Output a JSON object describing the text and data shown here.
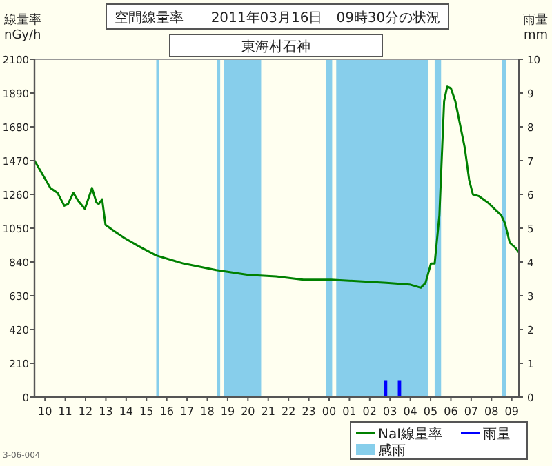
{
  "chart_data": {
    "type": "line",
    "title": "空間線量率　　2011年03月16日　09時30分の状況",
    "subtitle": "東海村石神",
    "ylabel": "線量率 nGy/h",
    "y2label": "雨量 mm",
    "annotations": [
      "3-06-004"
    ],
    "xlim": [
      "2011-03-15T09:29",
      "2011-03-16T09:21"
    ],
    "xticks": [
      {
        "value": "2011-03-15T10:00",
        "label": "10"
      },
      {
        "value": "2011-03-15T11:00",
        "label": "11"
      },
      {
        "value": "2011-03-15T12:00",
        "label": "12"
      },
      {
        "value": "2011-03-15T13:00",
        "label": "13"
      },
      {
        "value": "2011-03-15T14:00",
        "label": "14"
      },
      {
        "value": "2011-03-15T15:00",
        "label": "15"
      },
      {
        "value": "2011-03-15T16:00",
        "label": "16"
      },
      {
        "value": "2011-03-15T17:00",
        "label": "17"
      },
      {
        "value": "2011-03-15T18:00",
        "label": "18"
      },
      {
        "value": "2011-03-15T19:00",
        "label": "19"
      },
      {
        "value": "2011-03-15T20:00",
        "label": "20"
      },
      {
        "value": "2011-03-15T21:00",
        "label": "21"
      },
      {
        "value": "2011-03-15T22:00",
        "label": "22"
      },
      {
        "value": "2011-03-15T23:00",
        "label": "23"
      },
      {
        "value": "2011-03-16T00:00",
        "label": "00"
      },
      {
        "value": "2011-03-16T01:00",
        "label": "01"
      },
      {
        "value": "2011-03-16T02:00",
        "label": "02"
      },
      {
        "value": "2011-03-16T03:00",
        "label": "03"
      },
      {
        "value": "2011-03-16T04:00",
        "label": "04"
      },
      {
        "value": "2011-03-16T05:00",
        "label": "05"
      },
      {
        "value": "2011-03-16T06:00",
        "label": "06"
      },
      {
        "value": "2011-03-16T07:00",
        "label": "07"
      },
      {
        "value": "2011-03-16T08:00",
        "label": "08"
      },
      {
        "value": "2011-03-16T09:00",
        "label": "09"
      }
    ],
    "ylim": [
      0,
      2100
    ],
    "yticks": [
      0,
      210,
      420,
      630,
      840,
      1050,
      1260,
      1470,
      1680,
      1890,
      2100
    ],
    "y2lim": [
      0,
      10
    ],
    "y2ticks": [
      0,
      1,
      2,
      3,
      4,
      5,
      6,
      7,
      8,
      9,
      10
    ],
    "legend": "bottom right",
    "series": [
      {
        "name": "NaI線量率",
        "color": "#008000",
        "x": [
          "2011-03-15T09:29",
          "2011-03-15T10:16",
          "2011-03-15T10:37",
          "2011-03-15T10:57",
          "2011-03-15T11:08",
          "2011-03-15T11:24",
          "2011-03-15T11:38",
          "2011-03-15T11:58",
          "2011-03-15T12:19",
          "2011-03-15T12:32",
          "2011-03-15T12:39",
          "2011-03-15T12:49",
          "2011-03-15T12:59",
          "2011-03-15T13:26",
          "2011-03-15T13:54",
          "2011-03-15T14:35",
          "2011-03-15T15:29",
          "2011-03-15T16:50",
          "2011-03-15T18:26",
          "2011-03-15T20:01",
          "2011-03-15T21:23",
          "2011-03-15T22:44",
          "2011-03-16T00:06",
          "2011-03-16T02:49",
          "2011-03-16T03:58",
          "2011-03-16T04:31",
          "2011-03-16T04:45",
          "2011-03-16T05:01",
          "2011-03-16T05:12",
          "2011-03-16T05:26",
          "2011-03-16T05:40",
          "2011-03-16T05:49",
          "2011-03-16T06:00",
          "2011-03-16T06:13",
          "2011-03-16T06:41",
          "2011-03-16T06:54",
          "2011-03-16T07:05",
          "2011-03-16T07:22",
          "2011-03-16T07:49",
          "2011-03-16T08:29",
          "2011-03-16T08:40",
          "2011-03-16T08:54",
          "2011-03-16T09:10",
          "2011-03-16T09:21"
        ],
        "values": [
          1470,
          1300,
          1270,
          1190,
          1200,
          1270,
          1220,
          1170,
          1300,
          1210,
          1200,
          1230,
          1070,
          1030,
          990,
          940,
          880,
          830,
          790,
          760,
          750,
          730,
          730,
          710,
          700,
          680,
          710,
          830,
          830,
          1130,
          1840,
          1930,
          1920,
          1840,
          1550,
          1350,
          1260,
          1250,
          1210,
          1130,
          1080,
          960,
          930,
          900
        ]
      },
      {
        "name": "雨量",
        "type": "bar",
        "axis": "y2",
        "color": "#0000ff",
        "x": [
          "2011-03-16T02:47",
          "2011-03-16T03:28"
        ],
        "values": [
          0.5,
          0.5
        ]
      }
    ],
    "bands": [
      {
        "axis": "x",
        "from": "2011-03-15T15:29",
        "to": "2011-03-15T15:37",
        "label": "感雨",
        "color": "#87ceeb"
      },
      {
        "axis": "x",
        "from": "2011-03-15T18:29",
        "to": "2011-03-15T18:38",
        "color": "#87ceeb"
      },
      {
        "axis": "x",
        "from": "2011-03-15T18:50",
        "to": "2011-03-15T20:39",
        "color": "#87ceeb"
      },
      {
        "axis": "x",
        "from": "2011-03-15T23:50",
        "to": "2011-03-16T00:09",
        "color": "#87ceeb"
      },
      {
        "axis": "x",
        "from": "2011-03-16T00:21",
        "to": "2011-03-16T04:52",
        "color": "#87ceeb"
      },
      {
        "axis": "x",
        "from": "2011-03-16T05:12",
        "to": "2011-03-16T05:31",
        "color": "#87ceeb"
      },
      {
        "axis": "x",
        "from": "2011-03-16T08:32",
        "to": "2011-03-16T08:43",
        "color": "#87ceeb"
      }
    ]
  }
}
